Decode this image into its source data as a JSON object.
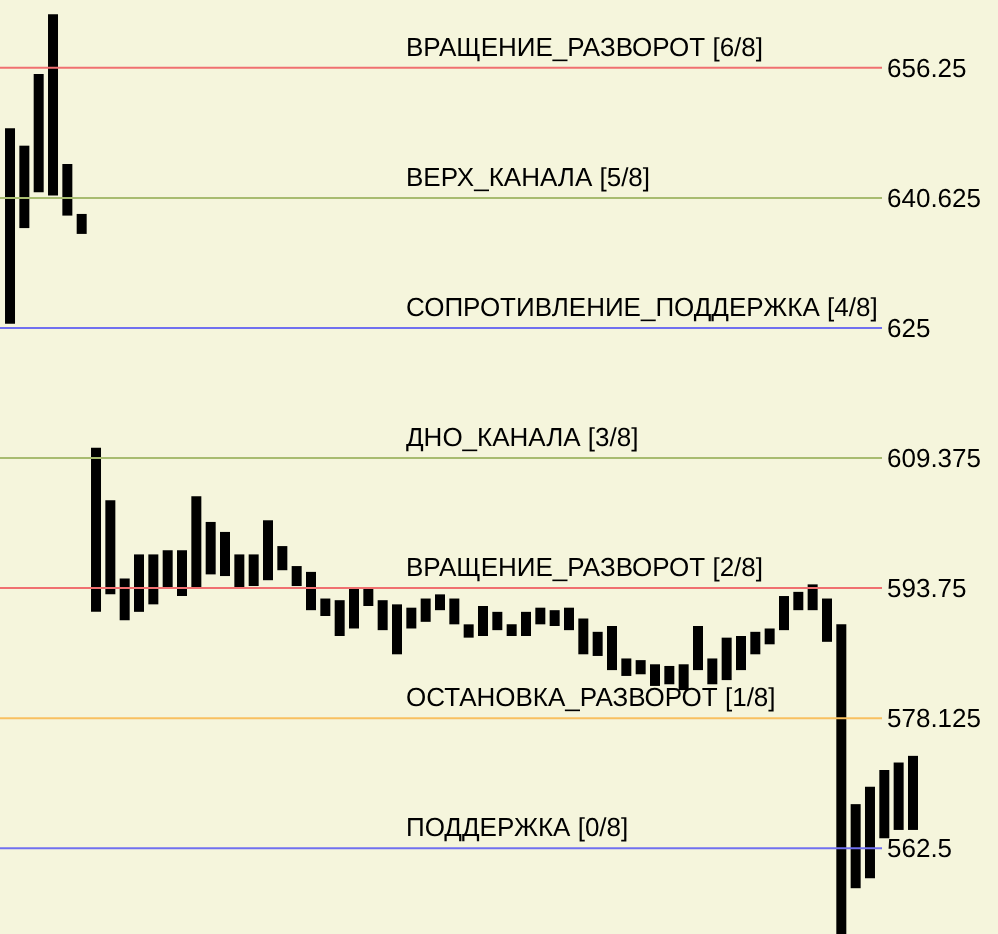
{
  "chart_data": {
    "type": "bar",
    "categories": [
      null,
      null,
      null,
      null,
      null,
      null,
      null,
      null,
      null,
      null,
      null,
      null,
      null,
      null,
      null,
      null,
      null,
      null,
      null,
      null,
      null,
      null,
      null,
      null,
      null,
      null,
      null,
      null,
      null,
      null,
      null,
      null,
      null,
      null,
      null,
      null,
      null,
      null,
      null,
      null,
      null,
      null,
      null,
      null,
      null,
      null,
      null,
      null,
      null,
      null,
      null,
      null,
      null,
      null,
      null,
      null,
      null,
      null,
      null,
      null,
      null,
      null,
      null,
      null
    ],
    "base": [
      625.5,
      637.0,
      641.3,
      640.9,
      638.5,
      636.3,
      590.9,
      593.0,
      589.9,
      590.9,
      591.8,
      593.8,
      592.8,
      593.8,
      595.4,
      595.2,
      593.8,
      594.0,
      594.7,
      595.9,
      594.0,
      591.1,
      590.4,
      588.0,
      588.9,
      591.6,
      588.7,
      585.8,
      588.9,
      589.7,
      591.1,
      589.4,
      587.8,
      588.0,
      588.7,
      588.0,
      588.0,
      589.4,
      589.2,
      588.7,
      585.8,
      585.6,
      583.9,
      583.2,
      583.4,
      582.0,
      582.2,
      581.5,
      583.9,
      582.2,
      582.7,
      583.9,
      585.8,
      587.0,
      588.7,
      591.1,
      591.1,
      587.3,
      552.2,
      557.7,
      558.9,
      563.7,
      564.7,
      564.7
    ],
    "values": [
      23.5,
      9.9,
      14.2,
      21.8,
      6.2,
      2.4,
      19.7,
      11.3,
      5.0,
      6.9,
      6.0,
      4.5,
      5.5,
      11.0,
      6.3,
      5.3,
      4.0,
      3.8,
      7.2,
      2.9,
      2.4,
      4.6,
      2.1,
      4.3,
      4.9,
      2.2,
      3.6,
      6.0,
      2.5,
      2.8,
      1.9,
      3.1,
      1.6,
      3.6,
      2.2,
      1.4,
      2.9,
      2.0,
      1.9,
      2.7,
      4.3,
      2.9,
      5.3,
      2.1,
      1.7,
      2.6,
      2.2,
      3.1,
      5.3,
      3.1,
      5.1,
      4.1,
      2.7,
      1.9,
      4.1,
      2.2,
      3.1,
      5.2,
      37.2,
      10.1,
      11.0,
      8.2,
      8.1,
      8.9
    ],
    "color": "#000000",
    "ylim": [
      552.2,
      664.4
    ],
    "yticks": [
      656.25,
      640.625,
      625,
      609.375,
      593.75,
      578.125,
      562.5
    ],
    "tick_labels": "y",
    "grid": false,
    "ref_lines": [
      {
        "axis": "y",
        "value": 656.25,
        "label": "ВРАЩЕНИЕ_РАЗВОРОТ [6/8]",
        "color": "#f07070"
      },
      {
        "axis": "y",
        "value": 640.625,
        "label": "ВЕРХ_КАНАЛА [5/8]",
        "color": "#a8bc70"
      },
      {
        "axis": "y",
        "value": 625,
        "label": "СОПРОТИВЛЕНИЕ_ПОДДЕРЖКА [4/8]",
        "color": "#7070f0"
      },
      {
        "axis": "y",
        "value": 609.375,
        "label": "ДНО_КАНАЛА [3/8]",
        "color": "#a8bc70"
      },
      {
        "axis": "y",
        "value": 593.75,
        "label": "ВРАЩЕНИЕ_РАЗВОРОТ [2/8]",
        "color": "#f07070"
      },
      {
        "axis": "y",
        "value": 578.125,
        "label": "ОСТАНОВКА_РАЗВОРОТ [1/8]",
        "color": "#f8c060"
      },
      {
        "axis": "y",
        "value": 562.5,
        "label": "ПОДДЕРЖКА [0/8]",
        "color": "#7070f0"
      }
    ]
  }
}
